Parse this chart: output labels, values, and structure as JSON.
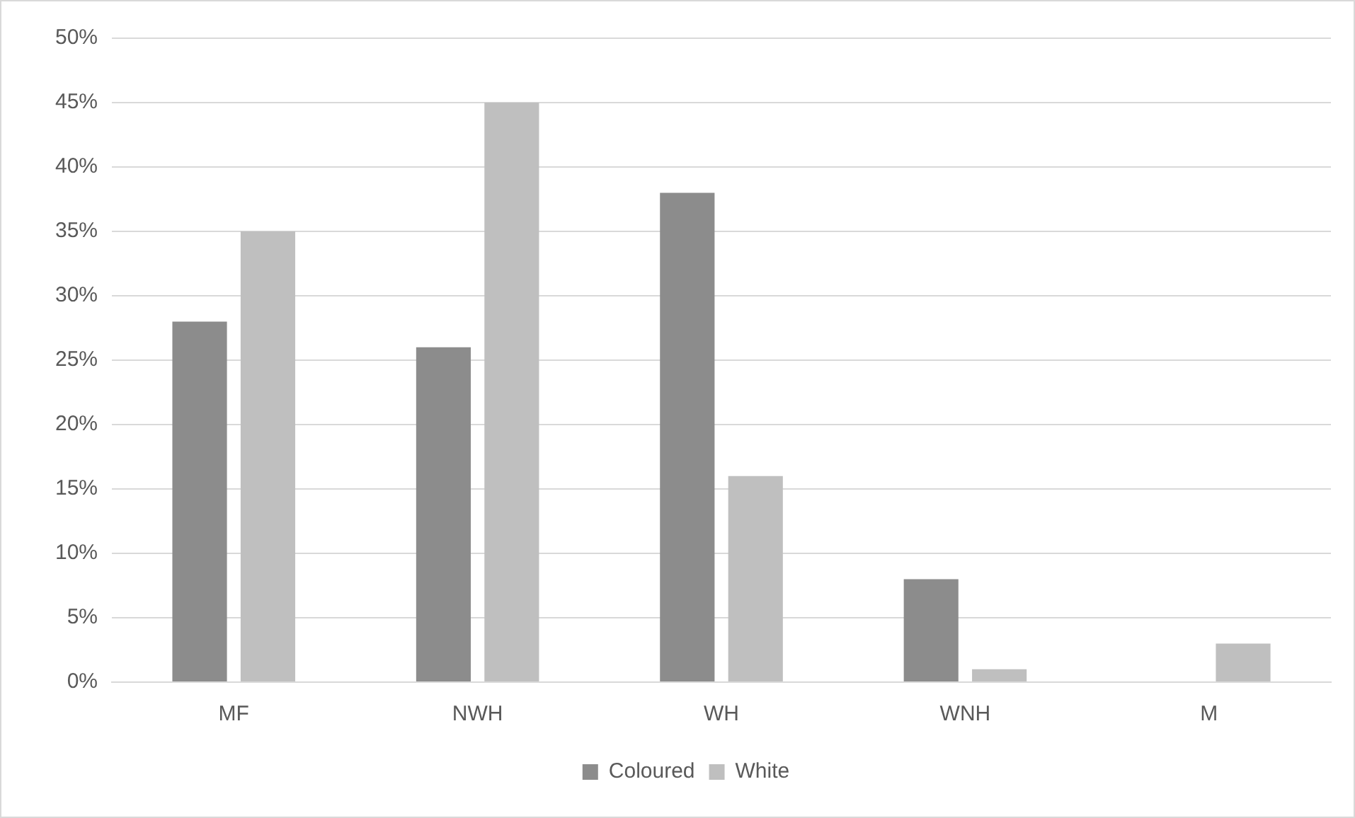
{
  "chart_data": {
    "type": "bar",
    "categories": [
      "MF",
      "NWH",
      "WH",
      "WNH",
      "M"
    ],
    "series": [
      {
        "name": "Coloured",
        "color": "#8c8c8c",
        "values": [
          28,
          26,
          38,
          8,
          0
        ]
      },
      {
        "name": "White",
        "color": "#bfbfbf",
        "values": [
          35,
          45,
          16,
          1,
          3
        ]
      }
    ],
    "ylim": [
      0,
      50
    ],
    "yticks": [
      {
        "value": 0,
        "label": "0%"
      },
      {
        "value": 5,
        "label": "5%"
      },
      {
        "value": 10,
        "label": "10%"
      },
      {
        "value": 15,
        "label": "15%"
      },
      {
        "value": 20,
        "label": "20%"
      },
      {
        "value": 25,
        "label": "25%"
      },
      {
        "value": 30,
        "label": "30%"
      },
      {
        "value": 35,
        "label": "35%"
      },
      {
        "value": 40,
        "label": "40%"
      },
      {
        "value": 45,
        "label": "45%"
      },
      {
        "value": 50,
        "label": "50%"
      }
    ],
    "grid": "y",
    "legend": "bottom"
  }
}
